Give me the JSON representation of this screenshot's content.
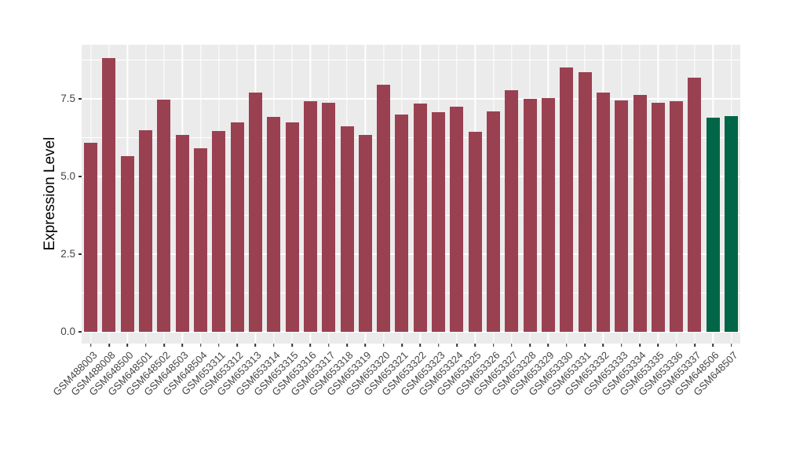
{
  "chart_data": {
    "type": "bar",
    "title": "",
    "xlabel": "",
    "ylabel": "Expression Level",
    "legend": "none",
    "grid": "on",
    "panel_background": "#EBEBEB",
    "grid_color": "#FFFFFF",
    "bar_color_default": "#9A4151",
    "bar_color_highlight": "#006647",
    "highlight_categories": [
      "GSM648506",
      "GSM648507"
    ],
    "x_label_rotation_deg": 45,
    "ylim": [
      0,
      9.24
    ],
    "y_ticks": [
      {
        "label": "0.0",
        "value": 0
      },
      {
        "label": "2.5",
        "value": 2.5
      },
      {
        "label": "5.0",
        "value": 5
      },
      {
        "label": "7.5",
        "value": 7.5
      }
    ],
    "categories": [
      "GSM488003",
      "GSM488008",
      "GSM648500",
      "GSM648501",
      "GSM648502",
      "GSM648503",
      "GSM648504",
      "GSM653311",
      "GSM653312",
      "GSM653313",
      "GSM653314",
      "GSM653315",
      "GSM653316",
      "GSM653317",
      "GSM653318",
      "GSM653319",
      "GSM653320",
      "GSM653321",
      "GSM653322",
      "GSM653323",
      "GSM653324",
      "GSM653325",
      "GSM653326",
      "GSM653327",
      "GSM653328",
      "GSM653329",
      "GSM653330",
      "GSM653331",
      "GSM653332",
      "GSM653333",
      "GSM653334",
      "GSM653335",
      "GSM653336",
      "GSM653337",
      "GSM648506",
      "GSM648507"
    ],
    "values": [
      6.09,
      8.81,
      5.66,
      6.5,
      7.48,
      6.33,
      5.91,
      6.46,
      6.74,
      7.69,
      6.91,
      6.74,
      7.42,
      7.37,
      6.62,
      6.33,
      7.96,
      7.0,
      7.34,
      7.06,
      7.25,
      6.45,
      7.1,
      7.78,
      7.5,
      7.53,
      8.51,
      8.35,
      7.71,
      7.46,
      7.63,
      7.37,
      7.42,
      8.19,
      6.89,
      6.94
    ]
  }
}
